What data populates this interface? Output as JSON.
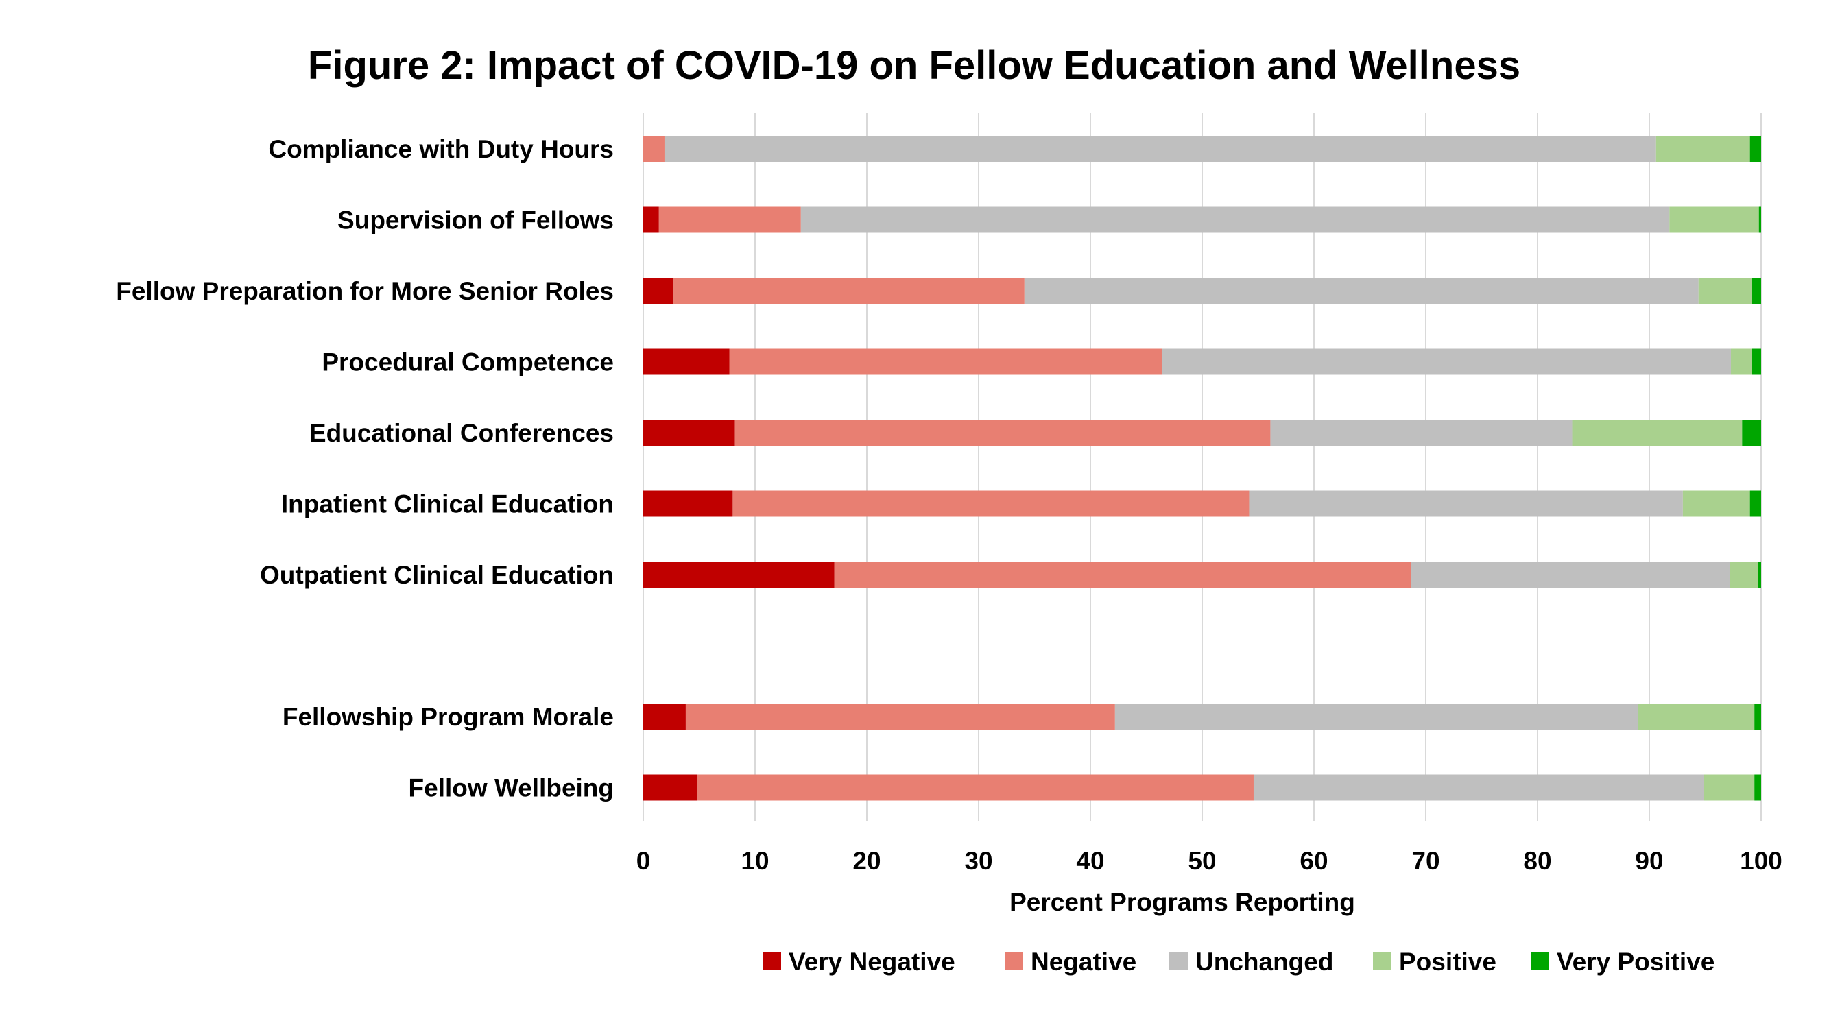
{
  "chart_data": {
    "type": "bar",
    "orientation": "horizontal",
    "stacked": true,
    "title": "Figure 2: Impact of COVID-19 on Fellow Education and Wellness",
    "xlabel": "Percent Programs Reporting",
    "ylabel": "",
    "xlim": [
      0,
      100
    ],
    "xticks": [
      0,
      10,
      20,
      30,
      40,
      50,
      60,
      70,
      80,
      90,
      100
    ],
    "grid": "vertical",
    "legend_position": "bottom",
    "categories": [
      "Compliance with Duty Hours",
      "Supervision of Fellows",
      "Fellow Preparation for More Senior Roles",
      "Procedural Competence",
      "Educational Conferences",
      "Inpatient Clinical Education",
      "Outpatient Clinical Education",
      "",
      "Fellowship Program Morale",
      "Fellow Wellbeing"
    ],
    "series": [
      {
        "name": "Very Negative",
        "color": "#C00000",
        "values": [
          0.0,
          1.4,
          2.7,
          7.7,
          8.2,
          8.0,
          17.1,
          null,
          3.8,
          4.8
        ]
      },
      {
        "name": "Negative",
        "color": "#E87F72",
        "values": [
          1.9,
          12.7,
          31.4,
          38.7,
          47.9,
          46.2,
          51.6,
          null,
          38.4,
          49.8
        ]
      },
      {
        "name": "Unchanged",
        "color": "#BFBFBF",
        "values": [
          88.7,
          77.7,
          60.3,
          50.9,
          27.0,
          38.8,
          28.5,
          null,
          46.8,
          40.3
        ]
      },
      {
        "name": "Positive",
        "color": "#A9D18E",
        "values": [
          8.4,
          8.0,
          4.8,
          1.9,
          15.2,
          6.0,
          2.5,
          null,
          10.4,
          4.5
        ]
      },
      {
        "name": "Very Positive",
        "color": "#00A600",
        "values": [
          1.0,
          0.2,
          0.8,
          0.8,
          1.7,
          1.0,
          0.3,
          null,
          0.6,
          0.6
        ]
      }
    ]
  }
}
